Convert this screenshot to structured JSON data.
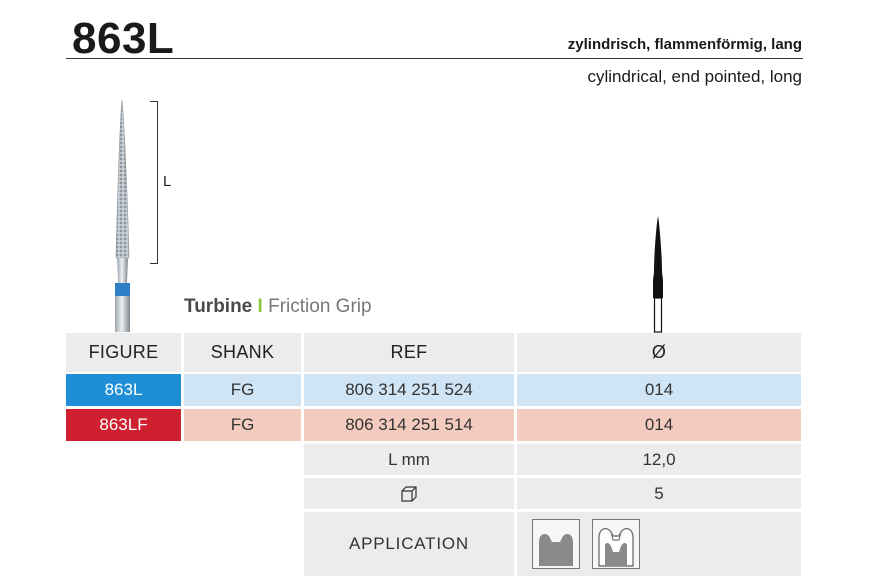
{
  "header": {
    "title": "863L",
    "subtitle_de": "zylindrisch, flammenförmig, lang",
    "subtitle_en": "cylindrical, end pointed, long"
  },
  "diagram": {
    "length_label": "L"
  },
  "grip": {
    "type": "Turbine",
    "separator": "I",
    "name": "Friction Grip"
  },
  "table": {
    "headers": {
      "figure": "FIGURE",
      "shank": "SHANK",
      "ref": "REF",
      "diameter": "Ø"
    },
    "rows": [
      {
        "figure": "863L",
        "shank": "FG",
        "ref": "806 314 251 524",
        "diameter": "014"
      },
      {
        "figure": "863LF",
        "shank": "FG",
        "ref": "806 314 251 514",
        "diameter": "014"
      }
    ],
    "length": {
      "label": "L mm",
      "value": "12,0"
    },
    "pack": {
      "value": "5"
    },
    "application": {
      "label": "APPLICATION"
    }
  },
  "colors": {
    "blue_figure": "#1e8fd6",
    "red_figure": "#cf2030",
    "blue_row": "#cfe4f5",
    "pink_row": "#f4cbbf",
    "grip_separator": "#8cc63f"
  },
  "icons": {
    "pack": "box-icon",
    "application": [
      "cavity-prep-icon",
      "crown-prep-icon"
    ]
  }
}
